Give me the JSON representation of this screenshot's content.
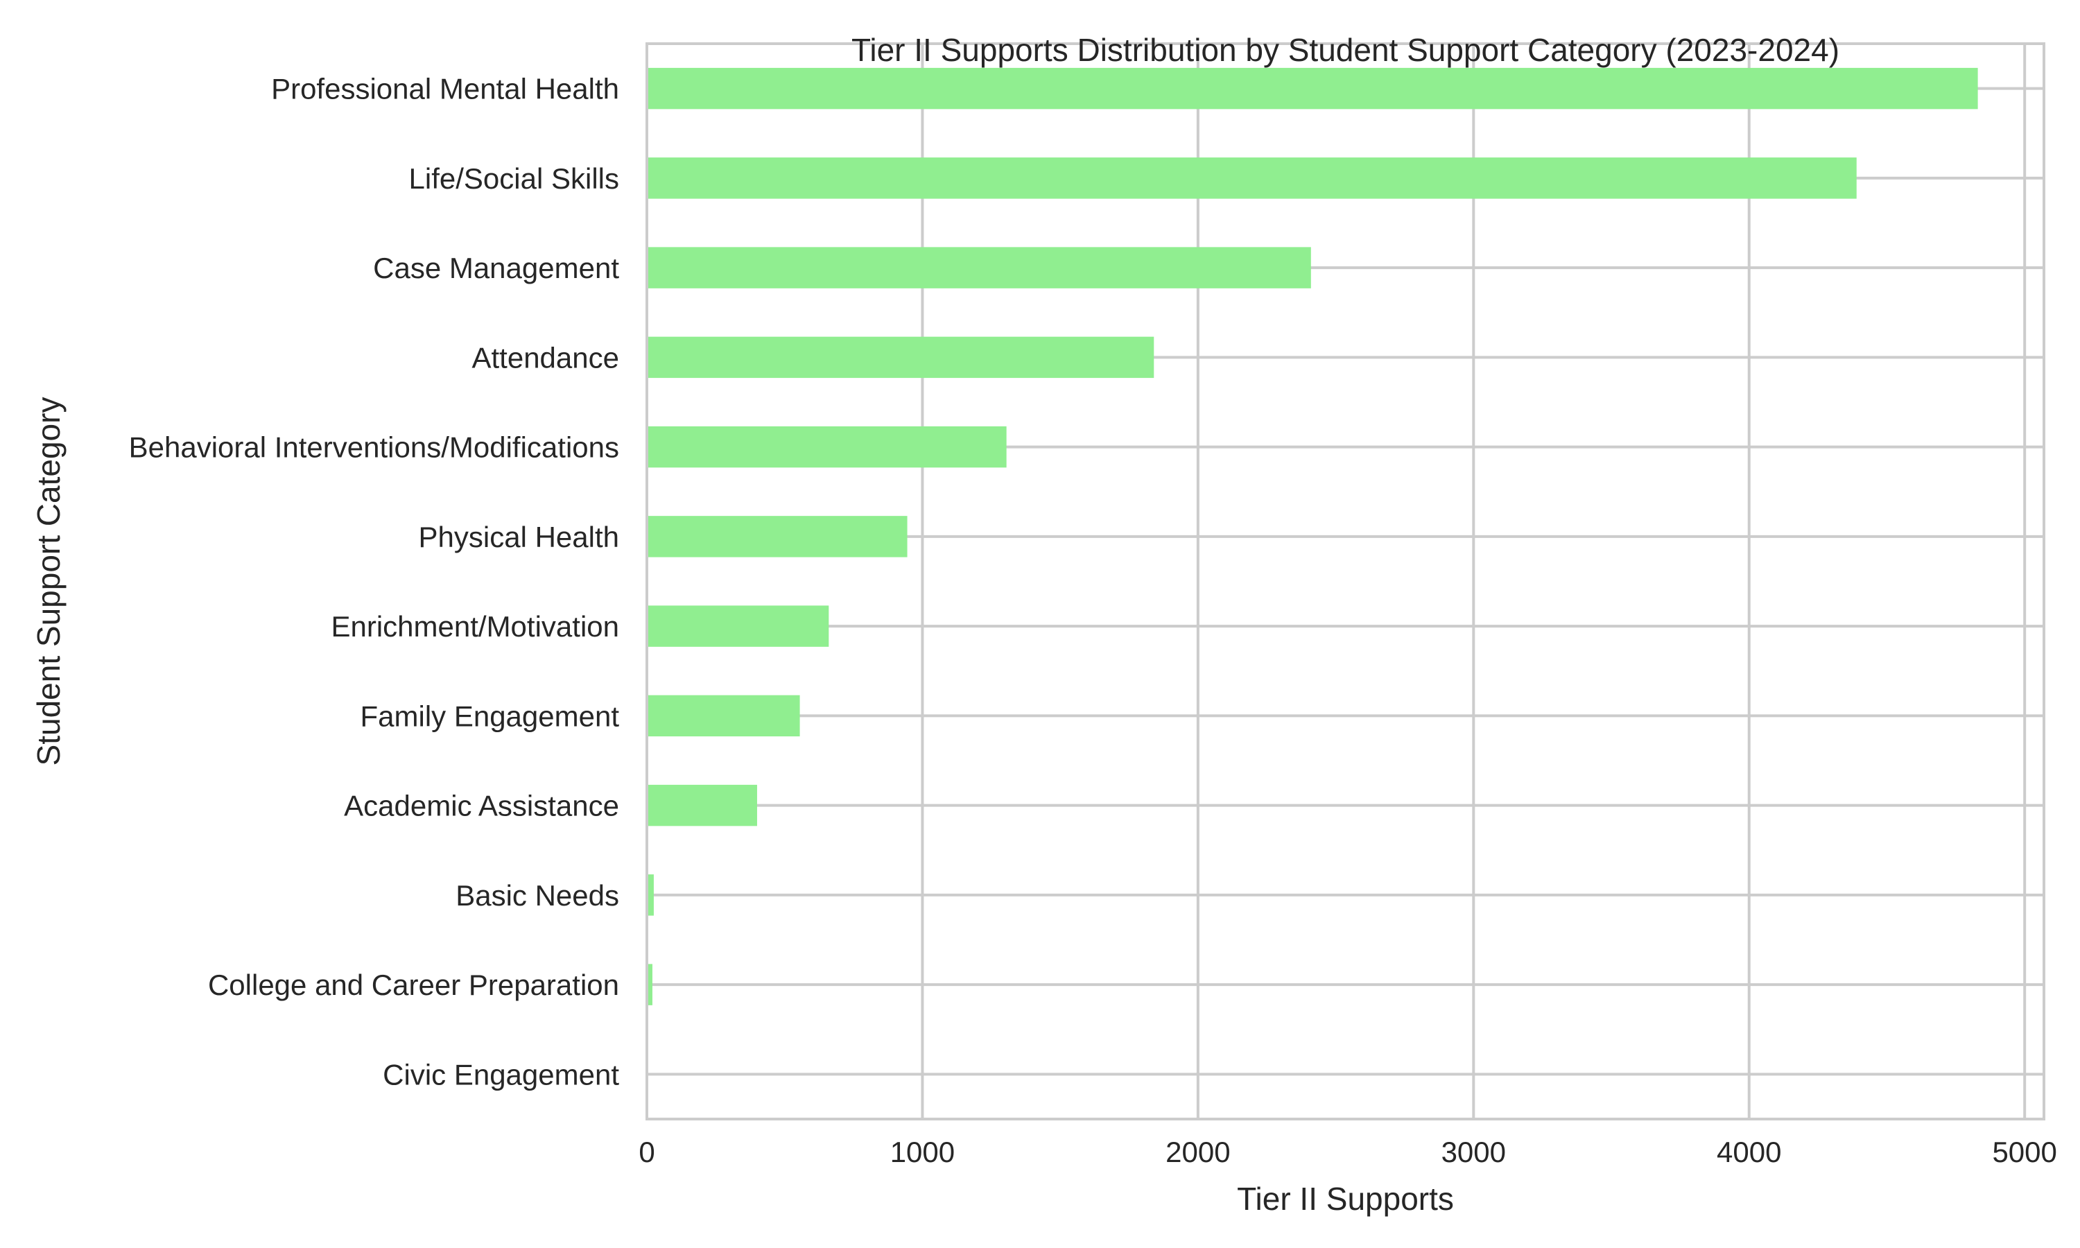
{
  "chart_data": {
    "type": "bar",
    "orientation": "horizontal",
    "title": "Tier II Supports Distribution by Student Support Category (2023-2024)",
    "xlabel": "Tier II Supports",
    "ylabel": "Student Support Category",
    "categories": [
      "Professional Mental Health",
      "Life/Social Skills",
      "Case Management",
      "Attendance",
      "Behavioral Interventions/Modifications",
      "Physical Health",
      "Enrichment/Motivation",
      "Family Engagement",
      "Academic Assistance",
      "Basic Needs",
      "College and Career Preparation",
      "Civic Engagement"
    ],
    "values": [
      4830,
      4390,
      2410,
      1840,
      1305,
      945,
      660,
      555,
      400,
      25,
      20,
      0
    ],
    "xlim": [
      0,
      5070
    ],
    "xticks": [
      0,
      1000,
      2000,
      3000,
      4000,
      5000
    ],
    "xtick_labels": [
      "0",
      "1000",
      "2000",
      "3000",
      "4000",
      "5000"
    ],
    "grid": true,
    "legend": "none",
    "colors": {
      "bar": "#90ee90",
      "grid": "#cccccc",
      "text": "#262626"
    }
  }
}
